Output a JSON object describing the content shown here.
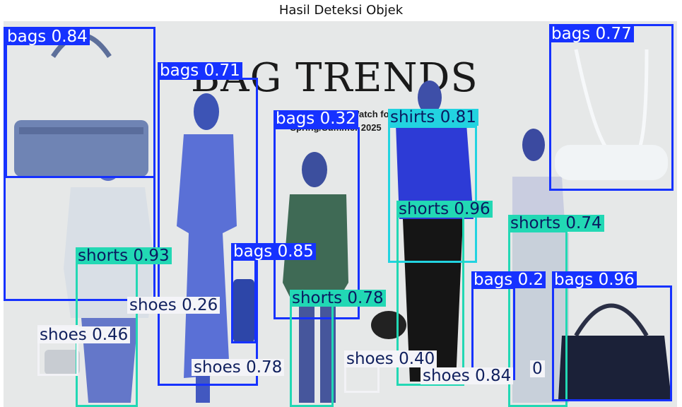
{
  "figure": {
    "title": "Hasil Deteksi Objek"
  },
  "poster": {
    "headline": "BAG TRENDS",
    "subheadline_line1": "The Handbag to Watch for",
    "subheadline_line2": "Spring/Summer 2025"
  },
  "colors": {
    "bags": "#1632ff",
    "shirts": "#22d3e0",
    "shorts": "#22d8b4",
    "shoes": "#f2f2f6"
  },
  "detections": [
    {
      "label": "bags 0.84"
    },
    {
      "label": "bags 0.71"
    },
    {
      "label": "bags 0.32"
    },
    {
      "label": "shirts 0.81"
    },
    {
      "label": "bags 0.77"
    },
    {
      "label": "shorts 0.96"
    },
    {
      "label": "shorts 0.74"
    },
    {
      "label": "shorts 0.93"
    },
    {
      "label": "bags 0.85"
    },
    {
      "label": "shorts 0.78"
    },
    {
      "label": "shoes 0.26"
    },
    {
      "label": "shoes 0.46"
    },
    {
      "label": "shoes 0.78"
    },
    {
      "label": "shoes 0.40"
    },
    {
      "label": "shoes 0.84"
    },
    {
      "label": "bags 0.2"
    },
    {
      "label": "bags 0.96"
    },
    {
      "label": "0"
    }
  ]
}
